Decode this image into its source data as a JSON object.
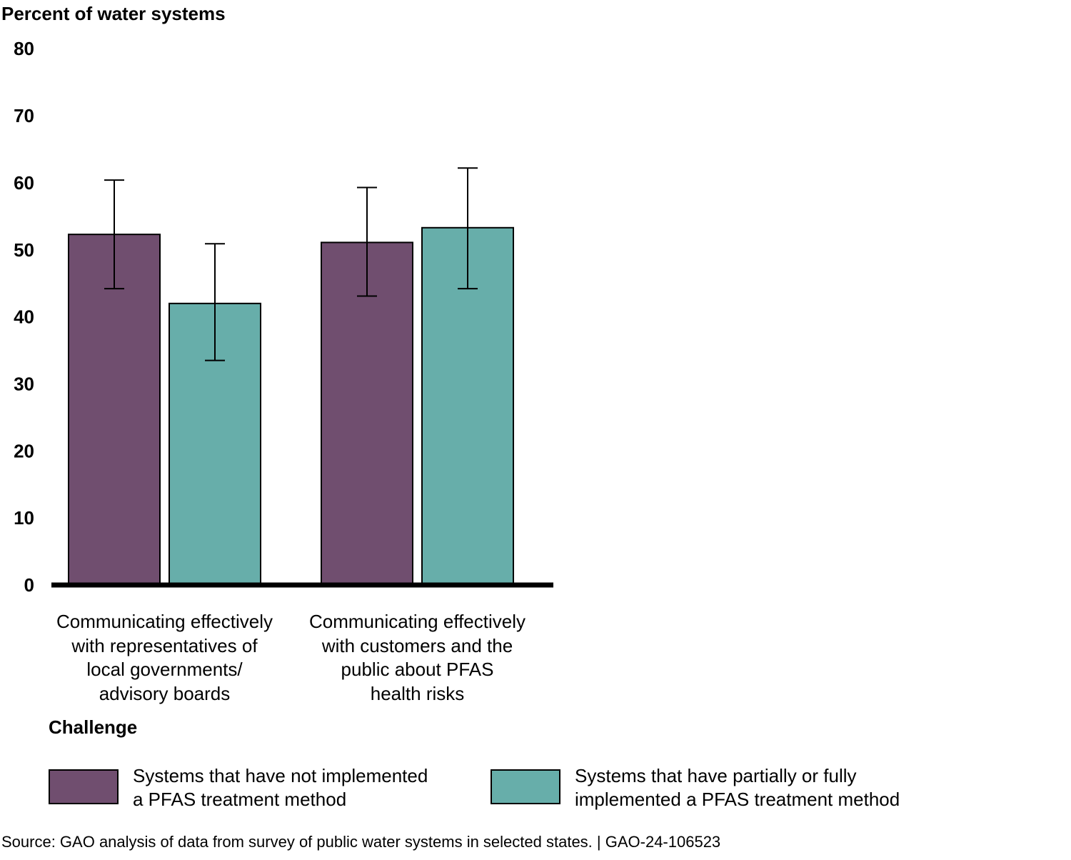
{
  "chart_data": {
    "type": "bar",
    "ylabel": "Percent of water systems",
    "xlabel": "Challenge",
    "ylim": [
      0,
      80
    ],
    "yticks": [
      0,
      10,
      20,
      30,
      40,
      50,
      60,
      70,
      80
    ],
    "grid": false,
    "legend_position": "bottom",
    "categories": [
      "Communicating effectively\nwith representatives of\nlocal governments/\nadvisory boards",
      "Communicating effectively\nwith customers and the\npublic about PFAS\nhealth risks"
    ],
    "series": [
      {
        "name": "Systems that have not implemented\na PFAS treatment method",
        "color": "#704e6f",
        "values": [
          52.3,
          51.1
        ],
        "error_low": [
          44.2,
          43.1
        ],
        "error_high": [
          60.4,
          59.3
        ]
      },
      {
        "name": "Systems that have partially or fully\nimplemented a PFAS treatment method",
        "color": "#67aeaa",
        "values": [
          42.0,
          53.3
        ],
        "error_low": [
          33.5,
          44.2
        ],
        "error_high": [
          50.9,
          62.2
        ]
      }
    ]
  },
  "source": "Source: GAO analysis of data from survey of public water systems in selected states.  |  GAO-24-106523"
}
